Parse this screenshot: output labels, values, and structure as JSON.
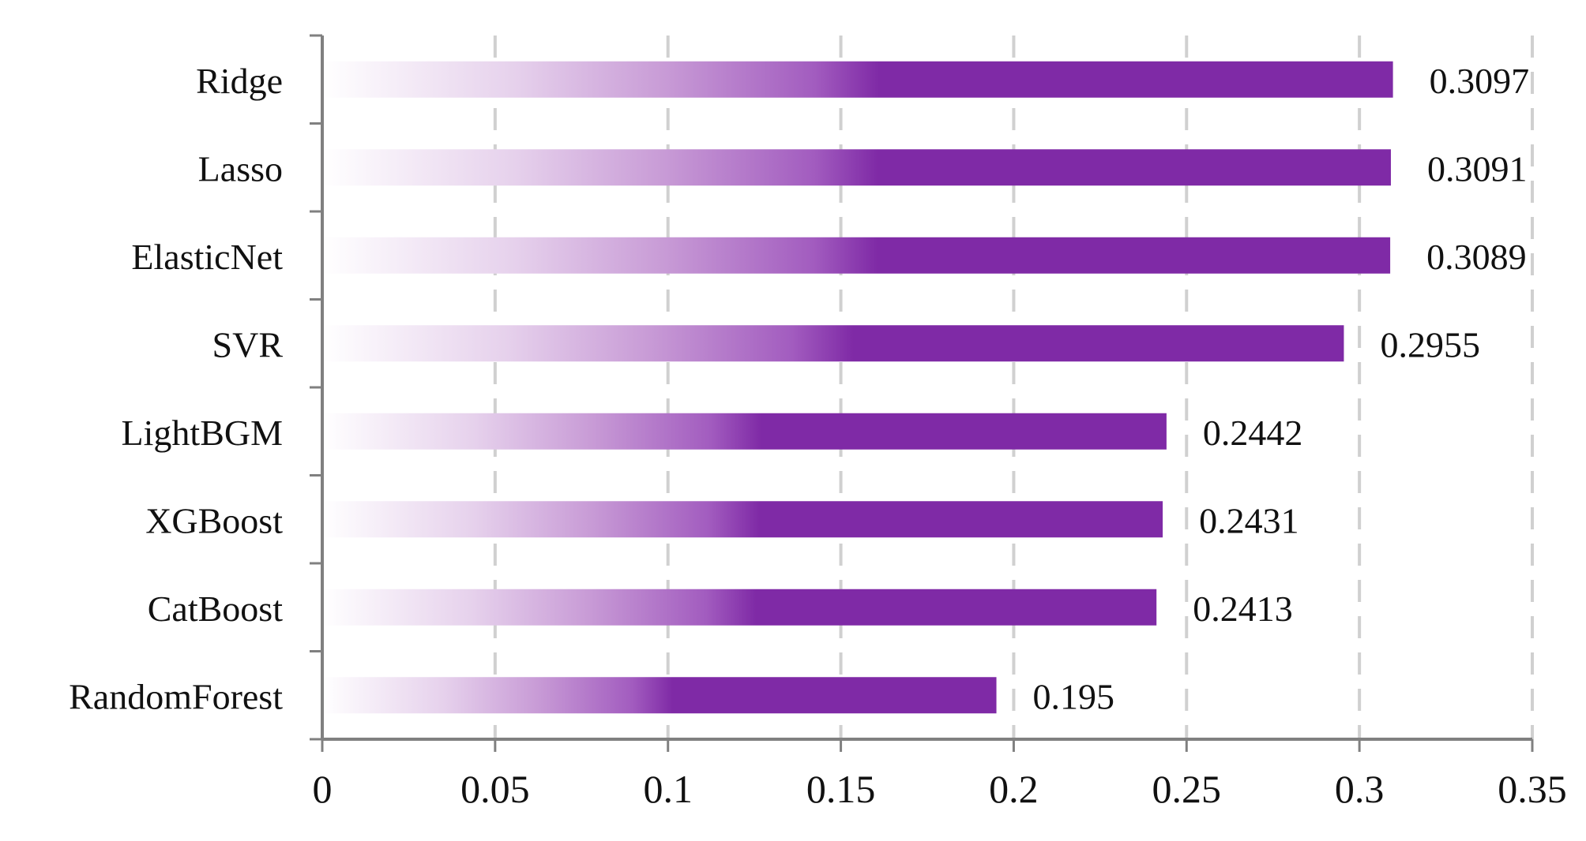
{
  "chart_data": {
    "type": "bar",
    "orientation": "horizontal",
    "categories": [
      "Ridge",
      "Lasso",
      "ElasticNet",
      "SVR",
      "LightBGM",
      "XGBoost",
      "CatBoost",
      "RandomForest"
    ],
    "values": [
      0.3097,
      0.3091,
      0.3089,
      0.2955,
      0.2442,
      0.2431,
      0.2413,
      0.195
    ],
    "value_labels": [
      "0.3097",
      "0.3091",
      "0.3089",
      "0.2955",
      "0.2442",
      "0.2431",
      "0.2413",
      "0.195"
    ],
    "xlim": [
      0,
      0.35
    ],
    "x_ticks": [
      0,
      0.05,
      0.1,
      0.15,
      0.2,
      0.25,
      0.3,
      0.35
    ],
    "x_tick_labels": [
      "0",
      "0.05",
      "0.1",
      "0.15",
      "0.2",
      "0.25",
      "0.3",
      "0.35"
    ],
    "title": "",
    "xlabel": "",
    "ylabel": "",
    "grid": "vertical dashed",
    "legend": "none",
    "bar_color": "#7f2aa6",
    "bar_fade_color": "#ffffff"
  }
}
